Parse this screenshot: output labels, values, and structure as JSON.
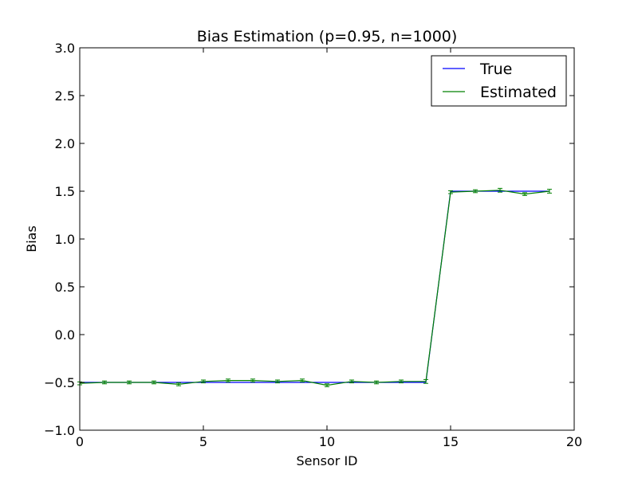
{
  "chart_data": {
    "type": "line",
    "title": "Bias Estimation (p=0.95, n=1000)",
    "xlabel": "Sensor ID",
    "ylabel": "Bias",
    "xlim": [
      0,
      20
    ],
    "ylim": [
      -1.0,
      3.0
    ],
    "xticks": [
      0,
      5,
      10,
      15,
      20
    ],
    "xtick_labels": [
      "0",
      "5",
      "10",
      "15",
      "20"
    ],
    "yticks": [
      -1.0,
      -0.5,
      0.0,
      0.5,
      1.0,
      1.5,
      2.0,
      2.5,
      3.0
    ],
    "ytick_labels": [
      "−1.0",
      "−0.5",
      "0.0",
      "0.5",
      "1.0",
      "1.5",
      "2.0",
      "2.5",
      "3.0"
    ],
    "grid": false,
    "legend_position": "top-right",
    "x": [
      0,
      1,
      2,
      3,
      4,
      5,
      6,
      7,
      8,
      9,
      10,
      11,
      12,
      13,
      14,
      15,
      16,
      17,
      18,
      19
    ],
    "series": [
      {
        "name": "True",
        "color": "#0000ff",
        "values": [
          -0.5,
          -0.5,
          -0.5,
          -0.5,
          -0.5,
          -0.5,
          -0.5,
          -0.5,
          -0.5,
          -0.5,
          -0.5,
          -0.5,
          -0.5,
          -0.5,
          -0.5,
          1.5,
          1.5,
          1.5,
          1.5,
          1.5
        ]
      },
      {
        "name": "Estimated",
        "color": "#008000",
        "values": [
          -0.51,
          -0.5,
          -0.5,
          -0.5,
          -0.52,
          -0.49,
          -0.48,
          -0.48,
          -0.49,
          -0.48,
          -0.53,
          -0.49,
          -0.5,
          -0.49,
          -0.49,
          1.49,
          1.5,
          1.51,
          1.47,
          1.5
        ],
        "error": [
          0.015,
          0.015,
          0.015,
          0.015,
          0.015,
          0.015,
          0.015,
          0.015,
          0.015,
          0.015,
          0.015,
          0.015,
          0.015,
          0.015,
          0.02,
          0.015,
          0.015,
          0.02,
          0.015,
          0.02
        ]
      }
    ]
  }
}
